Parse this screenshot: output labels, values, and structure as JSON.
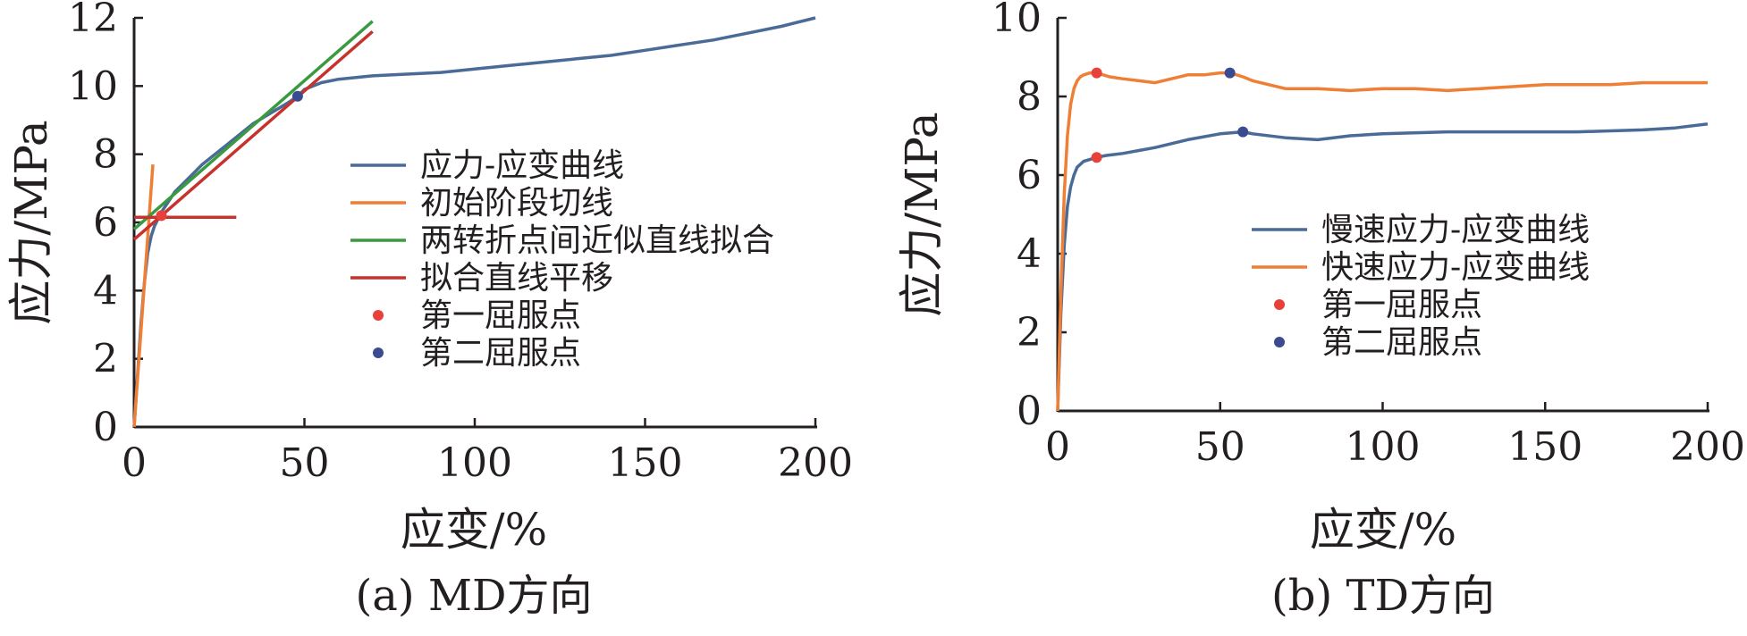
{
  "colors": {
    "blue": "#4a6a97",
    "orange": "#ef7f35",
    "green": "#3a9a40",
    "red": "#c8322d",
    "point_red": "#e8413a",
    "point_blue": "#3b4b8f",
    "axis": "#231f20"
  },
  "chart_data": [
    {
      "type": "line",
      "caption": "(a) MD方向",
      "xlabel": "应变/%",
      "ylabel": "应力/MPa",
      "xlim": [
        0,
        200
      ],
      "ylim": [
        0,
        12
      ],
      "xticks": [
        0,
        50,
        100,
        150,
        200
      ],
      "yticks": [
        0,
        2,
        4,
        6,
        8,
        10,
        12
      ],
      "grid": false,
      "legend_position": "right-center",
      "series": [
        {
          "name": "应力-应变曲线",
          "kind": "line",
          "color": "blue",
          "x": [
            0,
            1,
            2,
            3,
            4,
            5,
            6,
            7,
            8,
            10,
            12,
            15,
            18,
            20,
            25,
            30,
            35,
            40,
            45,
            48,
            50,
            55,
            60,
            70,
            80,
            90,
            100,
            110,
            120,
            130,
            140,
            150,
            160,
            170,
            180,
            190,
            200
          ],
          "y": [
            0,
            1.5,
            3.0,
            4.2,
            5.1,
            5.6,
            5.9,
            6.1,
            6.3,
            6.6,
            6.9,
            7.2,
            7.5,
            7.7,
            8.1,
            8.5,
            8.9,
            9.2,
            9.5,
            9.7,
            9.9,
            10.1,
            10.2,
            10.3,
            10.35,
            10.4,
            10.5,
            10.6,
            10.7,
            10.8,
            10.9,
            11.05,
            11.2,
            11.35,
            11.55,
            11.75,
            12.0
          ]
        },
        {
          "name": "初始阶段切线",
          "kind": "line",
          "color": "orange",
          "x": [
            0,
            5.5
          ],
          "y": [
            0,
            7.7
          ]
        },
        {
          "name": "两转折点间近似直线拟合",
          "kind": "line",
          "color": "green",
          "x": [
            0,
            70
          ],
          "y": [
            5.8,
            11.9
          ]
        },
        {
          "name": "拟合直线平移",
          "kind": "line",
          "color": "red",
          "x": [
            0,
            70
          ],
          "y": [
            5.5,
            11.6
          ]
        },
        {
          "name": "",
          "kind": "line",
          "color": "red",
          "x": [
            0,
            30
          ],
          "y": [
            6.15,
            6.15
          ]
        },
        {
          "name": "第一屈服点",
          "kind": "point",
          "color": "point_red",
          "x": [
            8
          ],
          "y": [
            6.2
          ]
        },
        {
          "name": "第二屈服点",
          "kind": "point",
          "color": "point_blue",
          "x": [
            48
          ],
          "y": [
            9.7
          ]
        }
      ]
    },
    {
      "type": "line",
      "caption": "(b) TD方向",
      "xlabel": "应变/%",
      "ylabel": "应力/MPa",
      "xlim": [
        0,
        200
      ],
      "ylim": [
        0,
        10
      ],
      "xticks": [
        0,
        50,
        100,
        150,
        200
      ],
      "yticks": [
        0,
        2,
        4,
        6,
        8,
        10
      ],
      "grid": false,
      "legend_position": "right-center",
      "series": [
        {
          "name": "慢速应力-应变曲线",
          "kind": "line",
          "color": "blue",
          "x": [
            0,
            1,
            2,
            3,
            4,
            5,
            6,
            8,
            10,
            12,
            15,
            20,
            30,
            40,
            50,
            57,
            60,
            70,
            80,
            90,
            100,
            120,
            140,
            160,
            180,
            190,
            200
          ],
          "y": [
            0,
            2.5,
            4.2,
            5.2,
            5.7,
            6.0,
            6.2,
            6.35,
            6.4,
            6.45,
            6.5,
            6.55,
            6.7,
            6.9,
            7.05,
            7.1,
            7.05,
            6.95,
            6.9,
            7.0,
            7.05,
            7.1,
            7.1,
            7.1,
            7.15,
            7.2,
            7.3
          ]
        },
        {
          "name": "快速应力-应变曲线",
          "kind": "line",
          "color": "orange",
          "x": [
            0,
            1,
            2,
            3,
            4,
            5,
            6,
            7,
            8,
            10,
            12,
            14,
            16,
            20,
            25,
            30,
            35,
            40,
            45,
            50,
            53,
            57,
            60,
            65,
            70,
            80,
            90,
            100,
            110,
            120,
            130,
            140,
            150,
            160,
            170,
            180,
            190,
            200
          ],
          "y": [
            0,
            3.0,
            5.5,
            7.0,
            7.8,
            8.2,
            8.4,
            8.5,
            8.55,
            8.6,
            8.6,
            8.55,
            8.5,
            8.45,
            8.4,
            8.35,
            8.45,
            8.55,
            8.55,
            8.6,
            8.6,
            8.5,
            8.4,
            8.3,
            8.2,
            8.2,
            8.15,
            8.2,
            8.2,
            8.15,
            8.2,
            8.25,
            8.3,
            8.3,
            8.3,
            8.35,
            8.35,
            8.35
          ]
        },
        {
          "name": "第一屈服点",
          "kind": "point",
          "color": "point_red",
          "x": [
            12,
            12
          ],
          "y": [
            8.6,
            6.45
          ]
        },
        {
          "name": "第二屈服点",
          "kind": "point",
          "color": "point_blue",
          "x": [
            53,
            57
          ],
          "y": [
            8.6,
            7.1
          ]
        }
      ]
    }
  ]
}
